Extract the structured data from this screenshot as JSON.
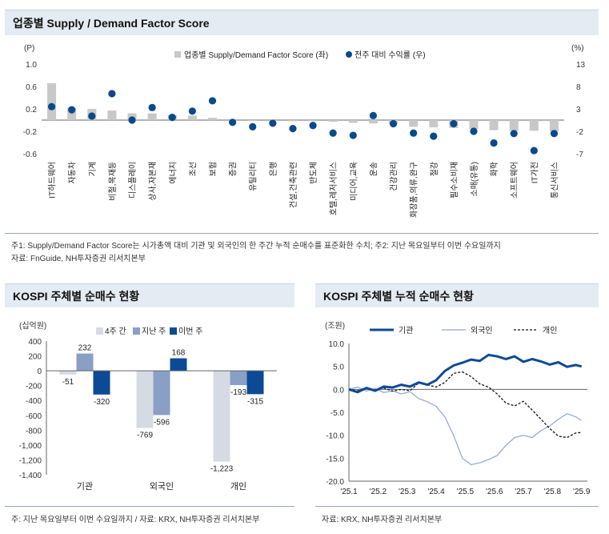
{
  "chart_data": [
    {
      "type": "bar",
      "title": "업종별 Supply / Demand Factor Score",
      "left_unit": "(P)",
      "right_unit": "(%)",
      "legend_bar": "업종별 Supply/Demand Factor Score (좌)",
      "legend_dot": "전주 대비 수익률 (우)",
      "colors": {
        "bar": "#c8c8c8",
        "dot": "#0a4a8c"
      },
      "ylim_left": [
        -0.6,
        1.0
      ],
      "yticks_left": [
        1.0,
        0.6,
        0.2,
        -0.2,
        -0.6
      ],
      "yticks_left_labels": [
        "1.0",
        "0.6",
        "0.2",
        "-0.2",
        "-0.6"
      ],
      "ylim_right": [
        -7,
        13
      ],
      "yticks_right": [
        13,
        8,
        3,
        -2,
        -7
      ],
      "yticks_right_labels": [
        "13",
        "8",
        "3",
        "-2",
        "-7"
      ],
      "categories": [
        "IT하드웨어",
        "자동차",
        "기계",
        "비철,목재등",
        "디스플레이",
        "상사,자본재",
        "에너지",
        "조선",
        "보험",
        "증권",
        "유틸리티",
        "은행",
        "건설,건축관련",
        "반도체",
        "호텔,레저서비스",
        "미디어,교육",
        "운송",
        "건강관리",
        "화장품,의류,완구",
        "철강",
        "필수소비재",
        "소매(유통)",
        "화학",
        "소프트웨어",
        "IT가전",
        "통신서비스"
      ],
      "series": [
        {
          "name": "업종별 Supply/Demand Factor Score (좌)",
          "axis": "left",
          "values": [
            0.66,
            0.22,
            0.2,
            0.17,
            0.12,
            0.12,
            0.09,
            0.08,
            0.04,
            0.0,
            -0.01,
            -0.01,
            -0.02,
            -0.02,
            -0.03,
            -0.05,
            -0.06,
            -0.07,
            -0.12,
            -0.13,
            -0.14,
            -0.16,
            -0.18,
            -0.19,
            -0.19,
            -0.2
          ]
        },
        {
          "name": "전주 대비 수익률 (우)",
          "axis": "right",
          "values": [
            3.5,
            2.8,
            1.4,
            6.4,
            0.5,
            3.3,
            1.1,
            2.5,
            4.8,
            0.0,
            -1.0,
            -0.2,
            -1.4,
            -0.7,
            -2.4,
            -2.9,
            1.5,
            -0.3,
            -2.4,
            -3.1,
            -0.3,
            -2.0,
            -4.6,
            -2.5,
            -6.3,
            -2.5
          ]
        }
      ]
    },
    {
      "type": "bar",
      "title": "KOSPI 주체별 순매수 현황",
      "ylabel": "(십억원)",
      "categories": [
        "기관",
        "외국인",
        "개인"
      ],
      "ylim": [
        -1400,
        400
      ],
      "yticks": [
        400,
        200,
        0,
        -200,
        -400,
        -600,
        -800,
        -1000,
        -1200,
        -1400
      ],
      "yticks_labels": [
        "400",
        "200",
        "0",
        "-200",
        "-400",
        "-600",
        "-800",
        "-1,000",
        "-1,200",
        "-1,400"
      ],
      "series": [
        {
          "name": "4주 간",
          "color": "#d6dbe3",
          "values": [
            -51,
            -769,
            -1223
          ],
          "labels": [
            "-51",
            "-769",
            "-1,223"
          ]
        },
        {
          "name": "지난 주",
          "color": "#8a9fc6",
          "values": [
            232,
            -596,
            -193
          ],
          "labels": [
            "232",
            "-596",
            "-193"
          ]
        },
        {
          "name": "이번 주",
          "color": "#0d4a96",
          "values": [
            -320,
            168,
            -315
          ],
          "labels": [
            "-320",
            "168",
            "-315"
          ]
        }
      ]
    },
    {
      "type": "line",
      "title": "KOSPI 주체별 누적 순매수 현황",
      "ylabel": "(조원)",
      "ylim": [
        -20,
        10
      ],
      "yticks": [
        10,
        5,
        0,
        -5,
        -10,
        -15,
        -20
      ],
      "yticks_labels": [
        "10.0",
        "5.0",
        "0.0",
        "-5.0",
        "-10.0",
        "-15.0",
        "-20.0"
      ],
      "xlim": [
        0,
        8.2
      ],
      "x_tick_labels": [
        "'25.1",
        "'25.2",
        "'25.3",
        "'25.4",
        "'25.5",
        "'25.6",
        "'25.7",
        "'25.8",
        "'25.9"
      ],
      "series": [
        {
          "name": "기관",
          "color": "#0d4a96",
          "style": "solid-thick",
          "x": [
            0,
            0.3,
            0.6,
            0.9,
            1.2,
            1.5,
            1.8,
            2.1,
            2.4,
            2.7,
            3.0,
            3.3,
            3.6,
            3.9,
            4.2,
            4.5,
            4.8,
            5.1,
            5.4,
            5.7,
            6.0,
            6.3,
            6.6,
            6.9,
            7.2,
            7.5,
            7.8,
            8.0
          ],
          "y": [
            0.0,
            -0.6,
            0.3,
            -0.3,
            0.6,
            0.4,
            1.0,
            0.6,
            1.5,
            1.0,
            2.0,
            4.0,
            5.2,
            5.8,
            6.5,
            6.2,
            7.5,
            7.2,
            6.6,
            7.2,
            6.0,
            6.6,
            6.1,
            5.4,
            5.9,
            4.9,
            5.3,
            5.0
          ]
        },
        {
          "name": "외국인",
          "color": "#8ea6cf",
          "style": "solid-thin",
          "x": [
            0,
            0.3,
            0.6,
            0.9,
            1.2,
            1.5,
            1.8,
            2.1,
            2.4,
            2.7,
            3.0,
            3.3,
            3.6,
            3.9,
            4.2,
            4.5,
            4.8,
            5.1,
            5.4,
            5.7,
            6.0,
            6.3,
            6.6,
            6.9,
            7.2,
            7.5,
            7.8,
            8.0
          ],
          "y": [
            0.0,
            0.5,
            -0.4,
            0.2,
            -0.7,
            -0.3,
            -1.0,
            -0.5,
            -2.0,
            -2.7,
            -3.7,
            -6.0,
            -10.0,
            -15.0,
            -16.4,
            -16.0,
            -15.3,
            -14.4,
            -12.2,
            -10.5,
            -10.0,
            -10.5,
            -9.0,
            -8.0,
            -6.5,
            -5.3,
            -6.0,
            -6.8
          ]
        },
        {
          "name": "개인",
          "color": "#111111",
          "style": "dashed",
          "x": [
            0,
            0.3,
            0.6,
            0.9,
            1.2,
            1.5,
            1.8,
            2.1,
            2.4,
            2.7,
            3.0,
            3.3,
            3.6,
            3.9,
            4.2,
            4.5,
            4.8,
            5.1,
            5.4,
            5.7,
            6.0,
            6.3,
            6.6,
            6.9,
            7.2,
            7.5,
            7.8,
            8.0
          ],
          "y": [
            0.0,
            -0.3,
            0.4,
            -0.2,
            0.3,
            -0.4,
            0.0,
            -0.3,
            1.4,
            1.0,
            0.5,
            1.5,
            3.5,
            3.8,
            2.8,
            1.2,
            0.5,
            -1.0,
            -3.0,
            -3.6,
            -2.6,
            -4.5,
            -6.5,
            -8.5,
            -10.2,
            -10.5,
            -9.5,
            -9.4
          ]
        }
      ]
    }
  ],
  "notes": {
    "top_note1": "주1: Supply/Demand Factor Score는 시가총액 대비 기관 및 외국인의 한 주간 누적 순매수를 표준화한 수치; 주2: 지난 목요일부터 이번 수요일까지",
    "top_note2": "자료: FnGuide, NH투자증권 리서치본부",
    "left_note": "주: 지난 목요일부터 이번 수요일까지 / 자료: KRX, NH투자증권 리서치본부",
    "right_note": "자료: KRX, NH투자증권 리서치본부"
  }
}
